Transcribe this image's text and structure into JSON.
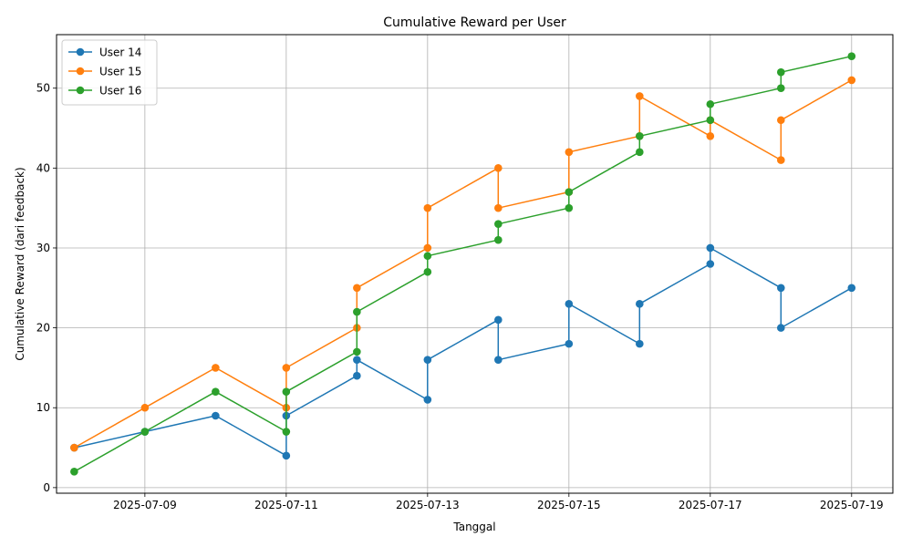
{
  "chart_data": {
    "type": "line",
    "title": "Cumulative Reward per User",
    "xlabel": "Tanggal",
    "ylabel": "Cumulative Reward (dari feedback)",
    "x_type": "date",
    "xlim": [
      "2025-07-07T18:00",
      "2025-07-19T14:00"
    ],
    "ylim": [
      -0.7,
      56.7
    ],
    "x_ticks": [
      "2025-07-09",
      "2025-07-11",
      "2025-07-13",
      "2025-07-15",
      "2025-07-17",
      "2025-07-19"
    ],
    "y_ticks": [
      0,
      10,
      20,
      30,
      40,
      50
    ],
    "grid": true,
    "legend_position": "upper left",
    "series": [
      {
        "name": "User 14",
        "color": "#1f77b4",
        "points": [
          [
            "2025-07-08",
            5
          ],
          [
            "2025-07-09",
            7
          ],
          [
            "2025-07-10",
            9
          ],
          [
            "2025-07-11",
            4
          ],
          [
            "2025-07-11",
            9
          ],
          [
            "2025-07-12",
            14
          ],
          [
            "2025-07-12",
            16
          ],
          [
            "2025-07-13",
            11
          ],
          [
            "2025-07-13",
            16
          ],
          [
            "2025-07-14",
            21
          ],
          [
            "2025-07-14",
            16
          ],
          [
            "2025-07-15",
            18
          ],
          [
            "2025-07-15",
            23
          ],
          [
            "2025-07-16",
            18
          ],
          [
            "2025-07-16",
            23
          ],
          [
            "2025-07-17",
            28
          ],
          [
            "2025-07-17",
            30
          ],
          [
            "2025-07-18",
            25
          ],
          [
            "2025-07-18",
            20
          ],
          [
            "2025-07-19",
            25
          ]
        ]
      },
      {
        "name": "User 15",
        "color": "#ff7f0e",
        "points": [
          [
            "2025-07-08",
            5
          ],
          [
            "2025-07-09",
            10
          ],
          [
            "2025-07-10",
            15
          ],
          [
            "2025-07-11",
            10
          ],
          [
            "2025-07-11",
            15
          ],
          [
            "2025-07-12",
            20
          ],
          [
            "2025-07-12",
            25
          ],
          [
            "2025-07-13",
            30
          ],
          [
            "2025-07-13",
            35
          ],
          [
            "2025-07-14",
            40
          ],
          [
            "2025-07-14",
            35
          ],
          [
            "2025-07-15",
            37
          ],
          [
            "2025-07-15",
            42
          ],
          [
            "2025-07-16",
            44
          ],
          [
            "2025-07-16",
            49
          ],
          [
            "2025-07-17",
            44
          ],
          [
            "2025-07-17",
            46
          ],
          [
            "2025-07-18",
            41
          ],
          [
            "2025-07-18",
            46
          ],
          [
            "2025-07-19",
            51
          ]
        ]
      },
      {
        "name": "User 16",
        "color": "#2ca02c",
        "points": [
          [
            "2025-07-08",
            2
          ],
          [
            "2025-07-09",
            7
          ],
          [
            "2025-07-10",
            12
          ],
          [
            "2025-07-11",
            7
          ],
          [
            "2025-07-11",
            12
          ],
          [
            "2025-07-12",
            17
          ],
          [
            "2025-07-12",
            22
          ],
          [
            "2025-07-13",
            27
          ],
          [
            "2025-07-13",
            29
          ],
          [
            "2025-07-14",
            31
          ],
          [
            "2025-07-14",
            33
          ],
          [
            "2025-07-15",
            35
          ],
          [
            "2025-07-15",
            37
          ],
          [
            "2025-07-16",
            42
          ],
          [
            "2025-07-16",
            44
          ],
          [
            "2025-07-17",
            46
          ],
          [
            "2025-07-17",
            48
          ],
          [
            "2025-07-18",
            50
          ],
          [
            "2025-07-18",
            52
          ],
          [
            "2025-07-19",
            54
          ]
        ]
      }
    ]
  }
}
